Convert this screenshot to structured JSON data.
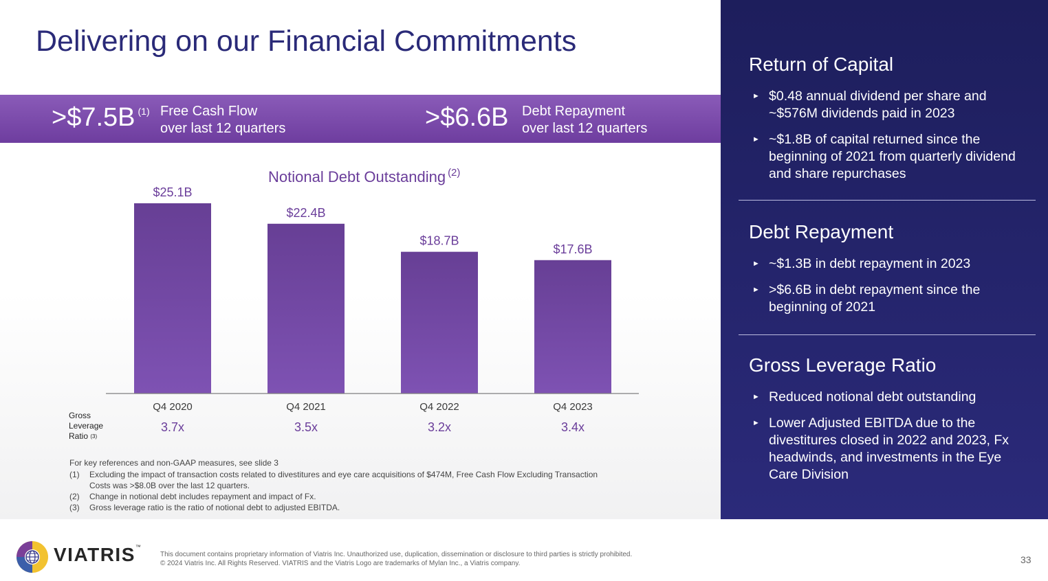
{
  "title": "Delivering on our Financial Commitments",
  "banner": {
    "metric1_value": ">$7.5B",
    "metric1_sup": "(1)",
    "metric1_line1": "Free Cash Flow",
    "metric1_line2": "over last 12 quarters",
    "metric2_value": ">$6.6B",
    "metric2_line1": "Debt Repayment",
    "metric2_line2": "over last 12 quarters"
  },
  "chart_data": {
    "type": "bar",
    "title": "Notional Debt Outstanding",
    "title_sup": "(2)",
    "categories": [
      "Q4 2020",
      "Q4 2021",
      "Q4 2022",
      "Q4 2023"
    ],
    "values": [
      25.1,
      22.4,
      18.7,
      17.6
    ],
    "value_labels": [
      "$25.1B",
      "$22.4B",
      "$18.7B",
      "$17.6B"
    ],
    "unit": "$B",
    "ylim": [
      0,
      25.1
    ],
    "grid": false,
    "colors": {
      "bar_top": "#673f95",
      "bar_bottom": "#7e52b3",
      "labels": "#6a3d9a"
    },
    "gross_leverage": {
      "label_lines": [
        "Gross",
        "Leverage",
        "Ratio"
      ],
      "label_sup": "(3)",
      "values": [
        "3.7x",
        "3.5x",
        "3.2x",
        "3.4x"
      ]
    }
  },
  "footnotes": {
    "intro": "For key references and non-GAAP measures, see slide 3",
    "items": [
      {
        "num": "(1)",
        "text": "Excluding the impact of transaction costs related to divestitures and eye care acquisitions of $474M, Free Cash Flow Excluding Transaction Costs was >$8.0B over the last 12 quarters."
      },
      {
        "num": "(2)",
        "text": "Change in notional debt includes repayment and impact of Fx."
      },
      {
        "num": "(3)",
        "text": "Gross leverage ratio is the ratio of notional debt to adjusted EBITDA."
      }
    ]
  },
  "sidebar": {
    "sections": [
      {
        "heading": "Return of Capital",
        "bullets": [
          "$0.48 annual dividend per share and ~$576M dividends paid in 2023",
          "~$1.8B of capital returned since the beginning of 2021 from quarterly dividend and share repurchases"
        ]
      },
      {
        "heading": "Debt Repayment",
        "bullets": [
          "~$1.3B in debt repayment in 2023",
          ">$6.6B in debt repayment since the beginning of 2021"
        ]
      },
      {
        "heading": "Gross Leverage Ratio",
        "bullets": [
          "Reduced notional debt outstanding",
          "Lower Adjusted EBITDA due to the divestitures closed in 2022 and 2023, Fx headwinds, and investments in the Eye Care Division"
        ]
      }
    ]
  },
  "footer": {
    "logo_text": "VIATRIS",
    "logo_tm": "™",
    "disclaimer_line1": "This document contains proprietary information of Viatris Inc. Unauthorized use, duplication, dissemination or disclosure to third parties is strictly prohibited.",
    "disclaimer_line2": "© 2024 Viatris Inc. All Rights Reserved. VIATRIS and the Viatris Logo are trademarks of Mylan Inc., a Viatris company.",
    "page_number": "33"
  }
}
